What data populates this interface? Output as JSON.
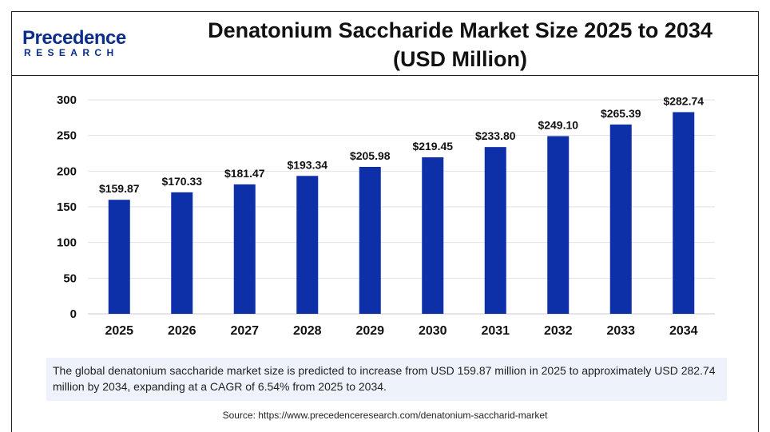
{
  "brand": {
    "name": "Precedence",
    "sub": "RESEARCH",
    "color": "#0b2e8a"
  },
  "title_line1": "Denatonium Saccharide Market Size 2025 to 2034",
  "title_line2": "(USD Million)",
  "chart_data": {
    "type": "bar",
    "categories": [
      "2025",
      "2026",
      "2027",
      "2028",
      "2029",
      "2030",
      "2031",
      "2032",
      "2033",
      "2034"
    ],
    "values": [
      159.87,
      170.33,
      181.47,
      193.34,
      205.98,
      219.45,
      233.8,
      249.1,
      265.39,
      282.74
    ],
    "value_labels": [
      "$159.87",
      "$170.33",
      "$181.47",
      "$193.34",
      "$205.98",
      "$219.45",
      "$233.80",
      "$249.10",
      "$265.39",
      "$282.74"
    ],
    "yticks": [
      "0",
      "50",
      "100",
      "150",
      "200",
      "250",
      "300"
    ],
    "ylim": [
      0,
      300
    ],
    "grid": true,
    "bar_color": "#0d2fa8",
    "title": "",
    "xlabel": "",
    "ylabel": ""
  },
  "note": "The global denatonium saccharide market size is predicted to increase from USD 159.87 million in 2025 to approximately USD 282.74 million by 2034, expanding at a CAGR of 6.54% from 2025 to 2034.",
  "source": "Source: https://www.precedenceresearch.com/denatonium-saccharid-market"
}
